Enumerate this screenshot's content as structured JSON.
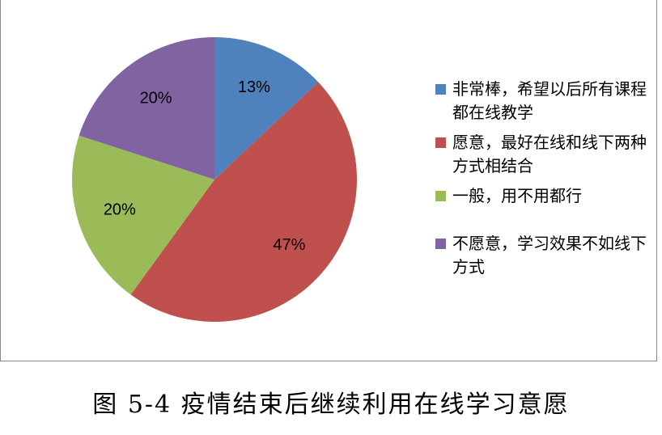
{
  "chart_data": {
    "type": "pie",
    "categories": [
      "非常棒，希望以后所有课程都在线教学",
      "愿意，最好在线和线下两种方式相结合",
      "一般，用不用都行",
      "不愿意，学习效果不如线下方式"
    ],
    "values": [
      13,
      47,
      20,
      20
    ],
    "value_labels": [
      "13%",
      "47%",
      "20%",
      "20%"
    ],
    "colors": [
      "#4f81bd",
      "#c0504d",
      "#9bbb59",
      "#8064a2"
    ],
    "legend": "right"
  },
  "caption": "图 5-4 疫情结束后继续利用在线学习意愿"
}
